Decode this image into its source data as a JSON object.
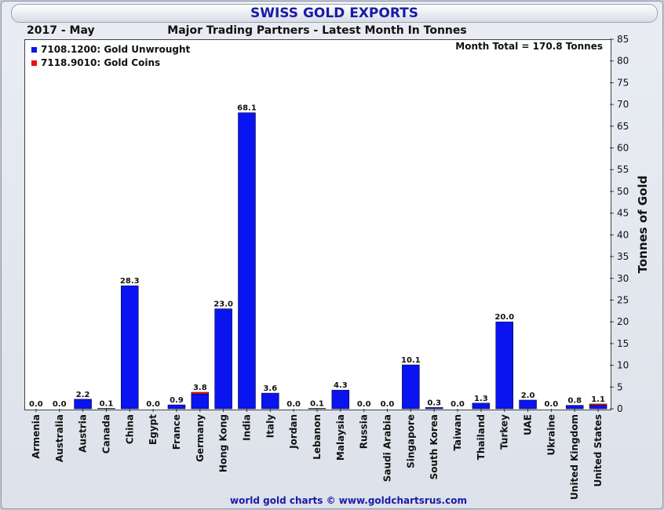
{
  "chart_data": {
    "type": "bar",
    "title": "SWISS GOLD EXPORTS",
    "period": "2017 - May",
    "subtitle": "Major Trading Partners - Latest Month In Tonnes",
    "annotation": "Month Total = 170.8 Tonnes",
    "ylabel": "Tonnes of Gold",
    "xlabel": "",
    "ylim": [
      0,
      85
    ],
    "yticks": [
      "0",
      "5",
      "10",
      "15",
      "20",
      "25",
      "30",
      "35",
      "40",
      "45",
      "50",
      "55",
      "60",
      "65",
      "70",
      "75",
      "80",
      "85"
    ],
    "grid": false,
    "legend_position": "top-left",
    "categories": [
      "Armenia",
      "Australia",
      "Austria",
      "Canada",
      "China",
      "Egypt",
      "France",
      "Germany",
      "Hong Kong",
      "India",
      "Italy",
      "Jordan",
      "Lebanon",
      "Malaysia",
      "Russia",
      "Saudi Arabia",
      "Singapore",
      "South Korea",
      "Taiwan",
      "Thailand",
      "Turkey",
      "UAE",
      "Ukraine",
      "United Kingdom",
      "United States"
    ],
    "series": [
      {
        "name": "7108.1200: Gold Unwrought",
        "color": "#0a14f0",
        "values": [
          0.0,
          0.0,
          2.2,
          0.1,
          28.3,
          0.0,
          0.9,
          3.4,
          23.0,
          68.1,
          3.6,
          0.0,
          0.1,
          4.3,
          0.0,
          0.0,
          10.1,
          0.3,
          0.0,
          1.3,
          20.0,
          2.0,
          0.0,
          0.8,
          0.8
        ]
      },
      {
        "name": "7118.9010: Gold Coins",
        "color": "#ee1111",
        "values": [
          0.0,
          0.0,
          0.0,
          0.0,
          0.0,
          0.0,
          0.0,
          0.4,
          0.0,
          0.0,
          0.0,
          0.0,
          0.0,
          0.0,
          0.0,
          0.0,
          0.0,
          0.0,
          0.0,
          0.0,
          0.0,
          0.0,
          0.0,
          0.0,
          0.3
        ]
      }
    ],
    "data_labels": [
      "0.0",
      "0.0",
      "2.2",
      "0.1",
      "28.3",
      "0.0",
      "0.9",
      "3.8",
      "23.0",
      "68.1",
      "3.6",
      "0.0",
      "0.1",
      "4.3",
      "0.0",
      "0.0",
      "10.1",
      "0.3",
      "0.0",
      "1.3",
      "20.0",
      "2.0",
      "0.0",
      "0.8",
      "1.1"
    ]
  },
  "footer": "world gold charts © www.goldchartsrus.com"
}
